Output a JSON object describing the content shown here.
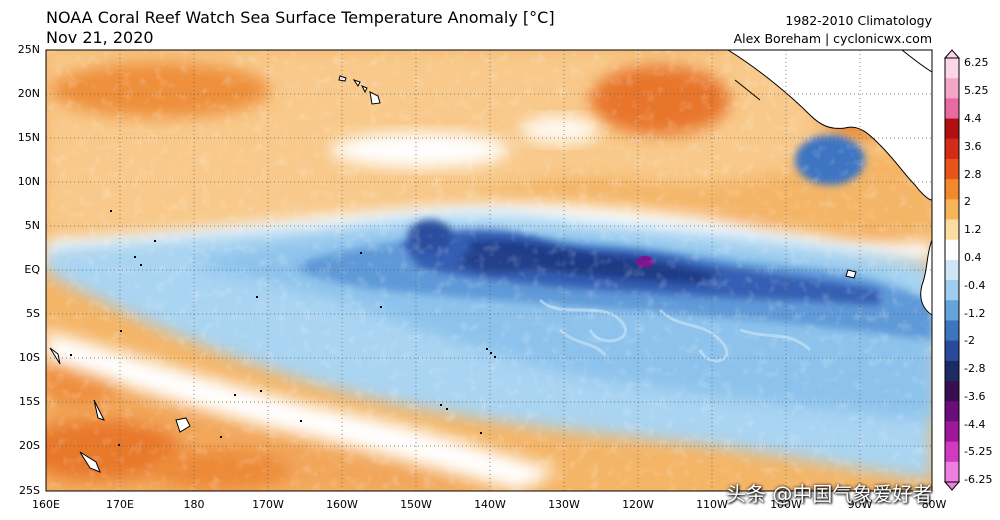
{
  "title": {
    "line1": "NOAA Coral Reef Watch Sea Surface Temperature Anomaly [°C]",
    "line2": "Nov 21, 2020"
  },
  "credit": {
    "line1": "1982-2010 Climatology",
    "line2": "Alex Boreham | cyclonicwx.com"
  },
  "map": {
    "lat_labels": [
      "25N",
      "20N",
      "15N",
      "10N",
      "5N",
      "EQ",
      "5S",
      "10S",
      "15S",
      "20S",
      "25S"
    ],
    "lon_labels": [
      "160E",
      "170E",
      "180",
      "170W",
      "160W",
      "150W",
      "140W",
      "130W",
      "120W",
      "110W",
      "100W",
      "90W",
      "80W"
    ]
  },
  "colorbar": {
    "labels": [
      "6.25",
      "5.25",
      "4.4",
      "3.6",
      "2.8",
      "2",
      "1.2",
      "0.4",
      "-0.4",
      "-1.2",
      "-2",
      "-2.8",
      "-3.6",
      "-4.4",
      "-5.25",
      "-6.25"
    ],
    "colors": [
      "#fbd6e6",
      "#f4a6c8",
      "#e86aa0",
      "#b01010",
      "#d42a16",
      "#e8541a",
      "#f28a2c",
      "#f7b55a",
      "#fbdca2",
      "#ffffff",
      "#cfe6f7",
      "#9fcdf0",
      "#63a4dc",
      "#3f74c0",
      "#2b4a9a",
      "#1c2a66",
      "#3a0f52",
      "#6a0d7a",
      "#a0189a",
      "#d23ac0",
      "#ee7fe2"
    ]
  },
  "watermark": "头条 @中国气象爱好者"
}
